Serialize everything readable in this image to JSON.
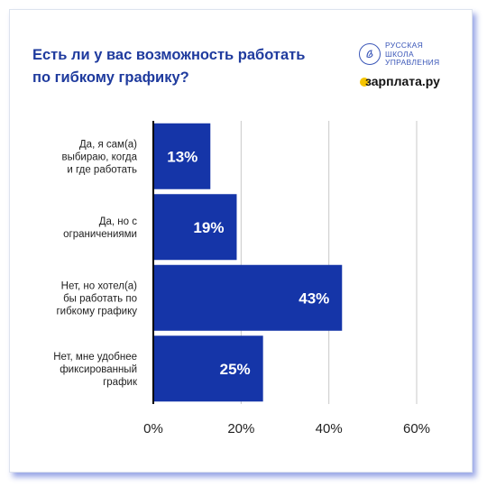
{
  "header": {
    "title_line1": "Есть ли у вас возможность работать",
    "title_line2": "по гибкому графику?"
  },
  "logos": {
    "rsu_line1": "РУССКАЯ",
    "rsu_line2": "ШКОЛА",
    "rsu_line3": "УПРАВЛЕНИЯ",
    "zarplata": "зарплата.ру"
  },
  "colors": {
    "bar": "#1535a8",
    "title": "#1f3b9e",
    "grid": "#c8c8c8",
    "axis": "#000000",
    "bar_label": "#ffffff",
    "text": "#222222"
  },
  "chart_data": {
    "type": "bar",
    "orientation": "horizontal",
    "title": "Есть ли у вас возможность работать по гибкому графику?",
    "categories": [
      [
        "Да, я сам(а)",
        "выбираю, когда",
        "и где работать"
      ],
      [
        "Да, но с",
        "ограничениями"
      ],
      [
        "Нет, но хотел(а)",
        "бы работать по",
        "гибкому графику"
      ],
      [
        "Нет, мне удобнее",
        "фиксированный",
        "график"
      ]
    ],
    "values": [
      13,
      19,
      43,
      25
    ],
    "data_labels": [
      "13%",
      "19%",
      "43%",
      "25%"
    ],
    "xlim": [
      0,
      60
    ],
    "xticks": [
      0,
      20,
      40,
      60
    ],
    "xtick_labels": [
      "0%",
      "20%",
      "40%",
      "60%"
    ],
    "grid": true
  }
}
